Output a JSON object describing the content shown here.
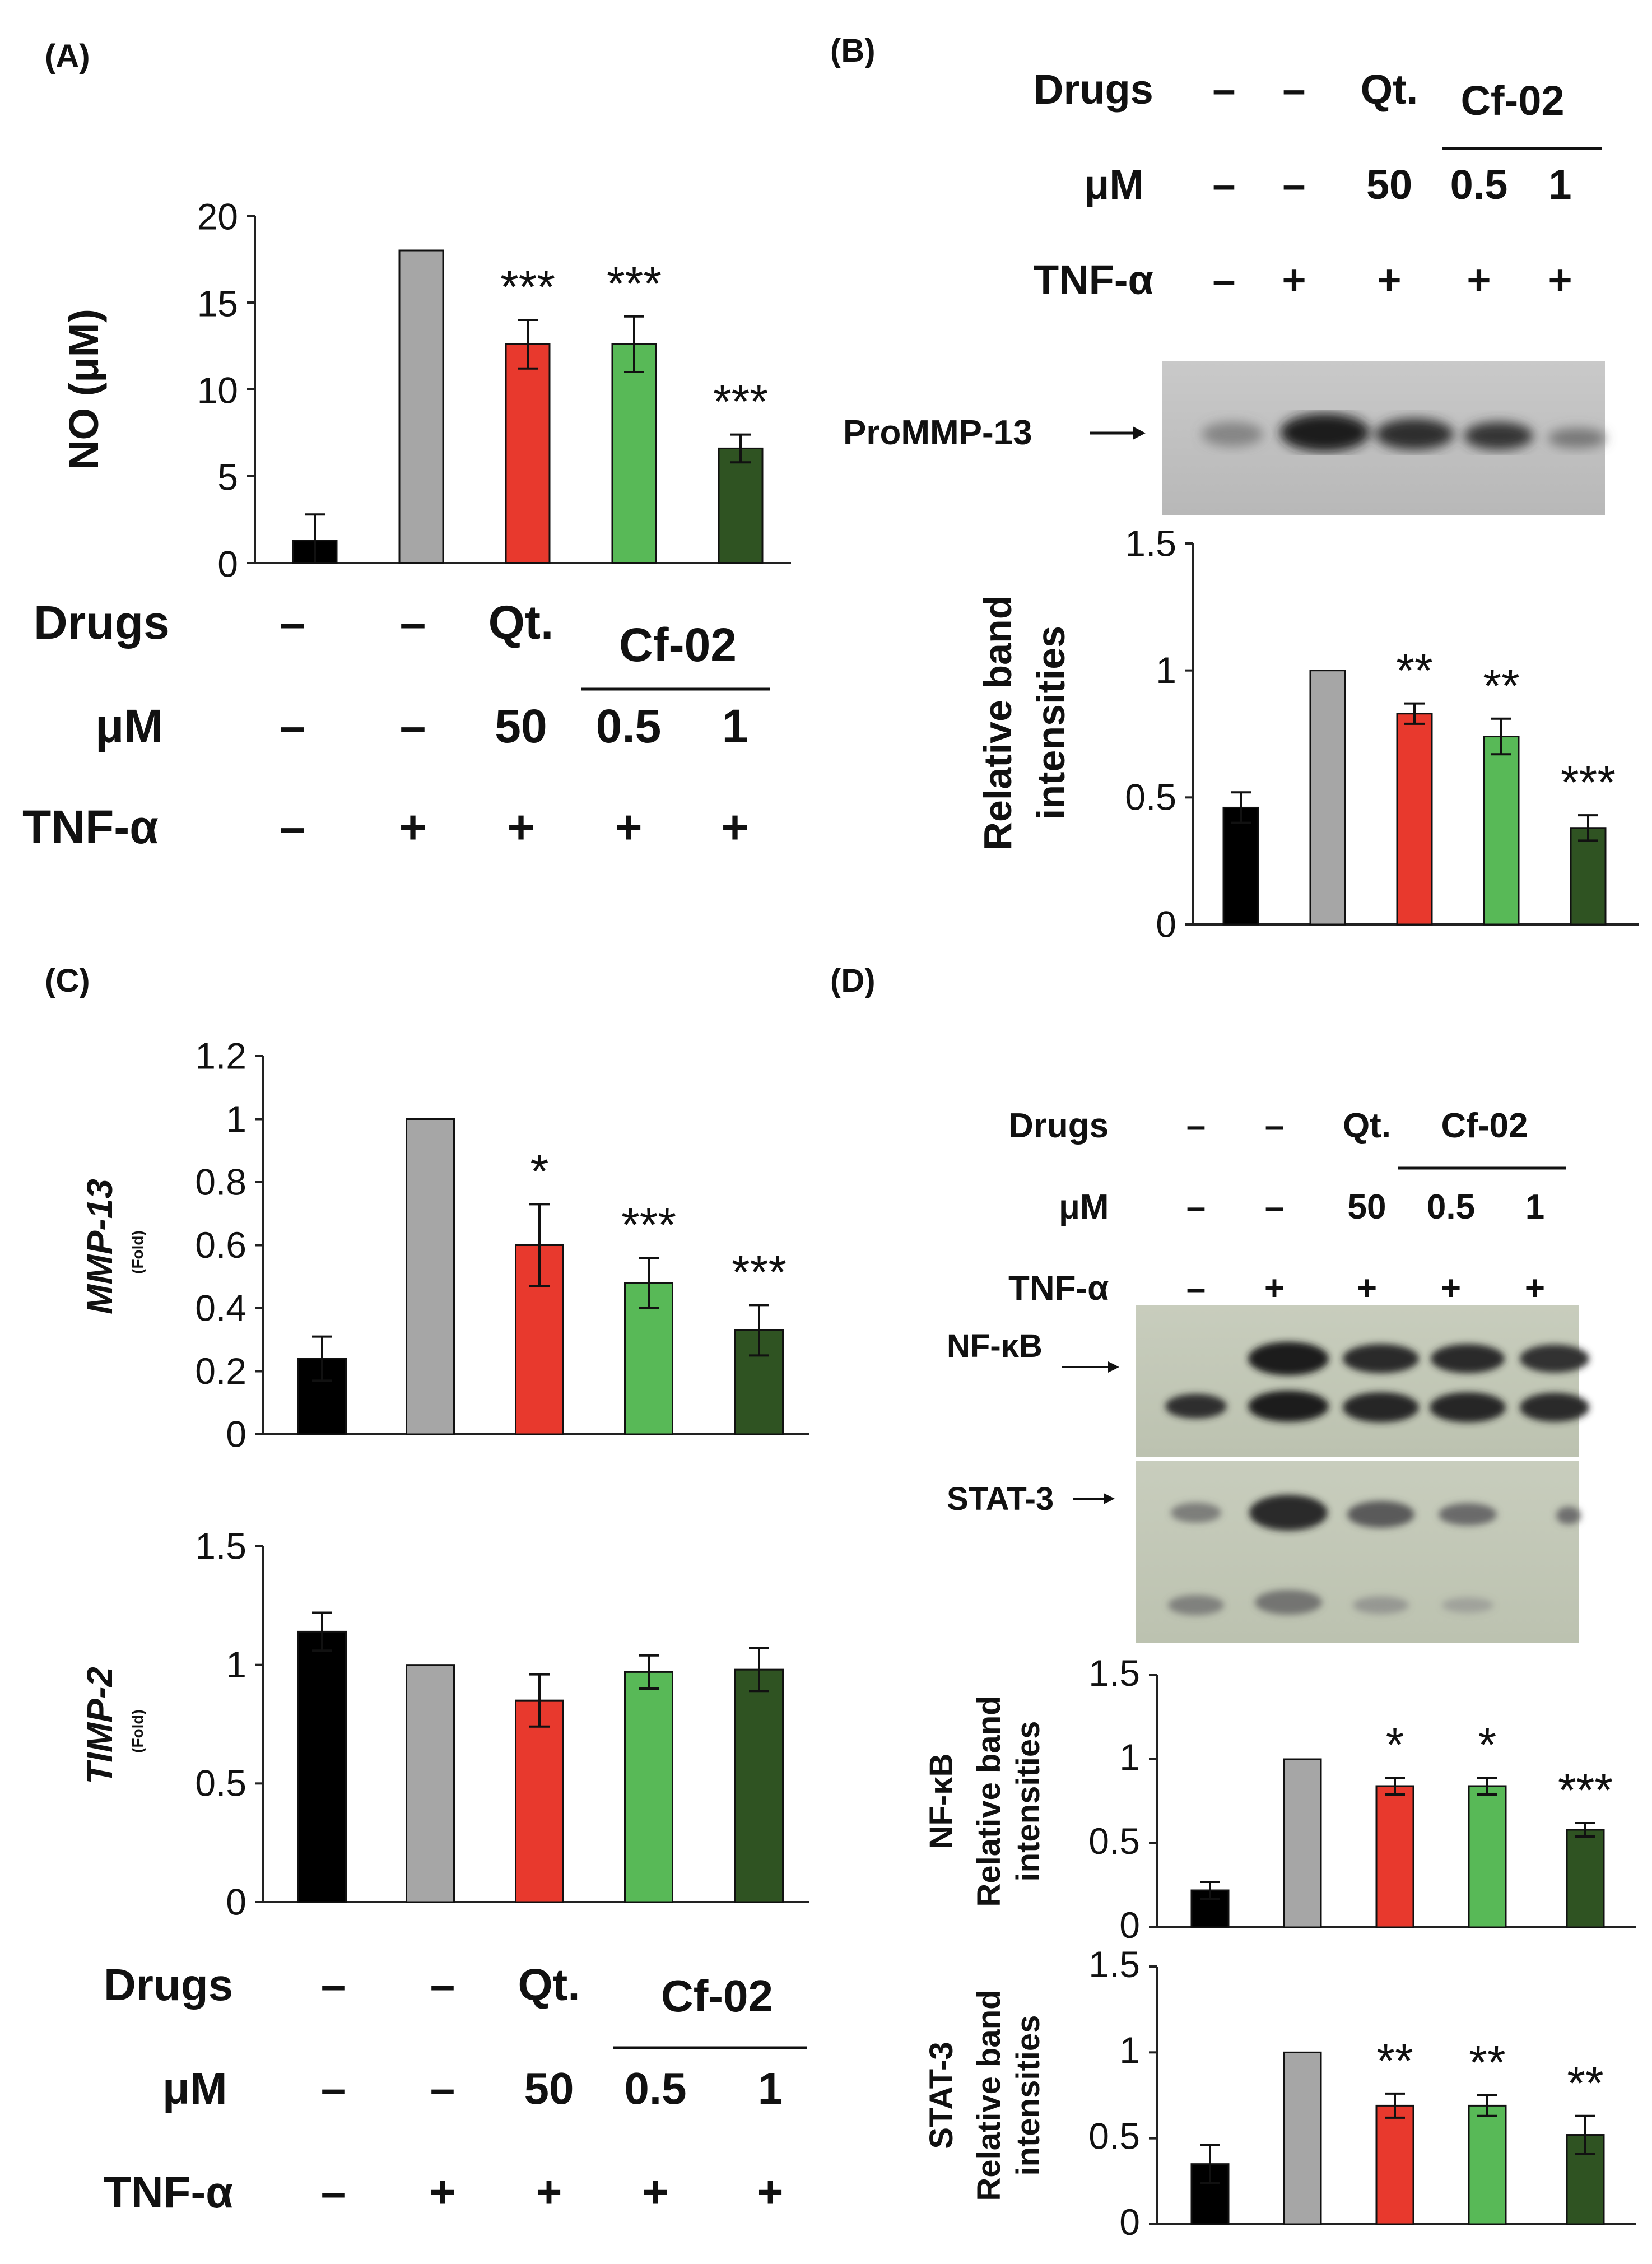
{
  "panels": {
    "A": "(A)",
    "B": "(B)",
    "C": "(C)",
    "D": "(D)"
  },
  "treatments": {
    "drugs_label": "Drugs",
    "um_label": "μM",
    "tnf_label": "TNF-α",
    "drugs": [
      "–",
      "–",
      "Qt.",
      "",
      ""
    ],
    "group_label": "Cf-02",
    "um": [
      "–",
      "–",
      "50",
      "0.5",
      "1"
    ],
    "tnf": [
      "–",
      "+",
      "+",
      "+",
      "+"
    ]
  },
  "blot_labels": {
    "prommp13": "ProMMP-13",
    "nfkb": "NF-κB",
    "stat3": "STAT-3"
  },
  "bar_colors": [
    "#000000",
    "#a6a6a6",
    "#e8392d",
    "#58b957",
    "#2f5322"
  ],
  "chart_data": [
    {
      "id": "A",
      "type": "bar",
      "categories": [
        "1",
        "2",
        "3",
        "4",
        "5"
      ],
      "values": [
        1.3,
        18,
        12.6,
        12.6,
        6.6
      ],
      "errors": [
        1.5,
        0,
        1.4,
        1.6,
        0.8
      ],
      "significance": [
        "",
        "",
        "***",
        "***",
        "***"
      ],
      "ylabel": "NO (μM)",
      "ylabel2": "",
      "ylim": [
        0,
        20
      ],
      "yticks": [
        "0",
        "5",
        "10",
        "15",
        "20"
      ]
    },
    {
      "id": "B",
      "type": "bar",
      "categories": [
        "1",
        "2",
        "3",
        "4",
        "5"
      ],
      "values": [
        0.46,
        1.0,
        0.83,
        0.74,
        0.38
      ],
      "errors": [
        0.06,
        0,
        0.04,
        0.07,
        0.05
      ],
      "significance": [
        "",
        "",
        "**",
        "**",
        "***"
      ],
      "ylabel": "Relative band",
      "ylabel2": "intensities",
      "ylim": [
        0,
        1.5
      ],
      "yticks": [
        "0",
        "0.5",
        "1",
        "1.5"
      ]
    },
    {
      "id": "C1",
      "type": "bar",
      "categories": [
        "1",
        "2",
        "3",
        "4",
        "5"
      ],
      "values": [
        0.24,
        1.0,
        0.6,
        0.48,
        0.33
      ],
      "errors": [
        0.07,
        0,
        0.13,
        0.08,
        0.08
      ],
      "significance": [
        "",
        "",
        "*",
        "***",
        "***"
      ],
      "ylabel": "MMP-13",
      "ylabel_sub": "(Fold)",
      "ylim": [
        0,
        1.2
      ],
      "yticks": [
        "0",
        "0.2",
        "0.4",
        "0.6",
        "0.8",
        "1",
        "1.2"
      ]
    },
    {
      "id": "C2",
      "type": "bar",
      "categories": [
        "1",
        "2",
        "3",
        "4",
        "5"
      ],
      "values": [
        1.14,
        1.0,
        0.85,
        0.97,
        0.98
      ],
      "errors": [
        0.08,
        0,
        0.11,
        0.07,
        0.09
      ],
      "significance": [
        "",
        "",
        "",
        "",
        ""
      ],
      "ylabel": "TIMP-2",
      "ylabel_sub": "(Fold)",
      "ylim": [
        0,
        1.5
      ],
      "yticks": [
        "0",
        "0.5",
        "1",
        "1.5"
      ]
    },
    {
      "id": "D1",
      "type": "bar",
      "categories": [
        "1",
        "2",
        "3",
        "4",
        "5"
      ],
      "values": [
        0.22,
        1.0,
        0.84,
        0.84,
        0.58
      ],
      "errors": [
        0.05,
        0,
        0.05,
        0.05,
        0.04
      ],
      "significance": [
        "",
        "",
        "*",
        "*",
        "***"
      ],
      "ylabel": "NF-κB",
      "ylabel2": "Relative band",
      "ylabel3": "intensities",
      "ylim": [
        0,
        1.5
      ],
      "yticks": [
        "0",
        "0.5",
        "1",
        "1.5"
      ]
    },
    {
      "id": "D2",
      "type": "bar",
      "categories": [
        "1",
        "2",
        "3",
        "4",
        "5"
      ],
      "values": [
        0.35,
        1.0,
        0.69,
        0.69,
        0.52
      ],
      "errors": [
        0.11,
        0,
        0.07,
        0.06,
        0.11
      ],
      "significance": [
        "",
        "",
        "**",
        "**",
        "**"
      ],
      "ylabel": "STAT-3",
      "ylabel2": "Relative band",
      "ylabel3": "intensities",
      "ylim": [
        0,
        1.5
      ],
      "yticks": [
        "0",
        "0.5",
        "1",
        "1.5"
      ]
    }
  ]
}
